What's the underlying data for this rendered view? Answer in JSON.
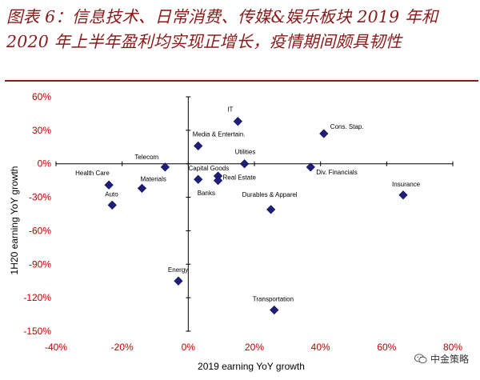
{
  "header": {
    "title": "图表 6：信息技术、日常消费、传媒&娱乐板块 2019 年和 2020 年上半年盈利均实现正增长，疫情期间颇具韧性"
  },
  "watermark": {
    "text": "中金策略"
  },
  "colors": {
    "title": "#8b1a1a",
    "axis_tick_label": "#c00000",
    "marker": "#1f1f7a",
    "axis": "#000000"
  },
  "chart_data": {
    "type": "scatter",
    "xlabel": "2019 earning YoY growth",
    "ylabel": "1H20 earning YoY growth",
    "xlim": [
      -40,
      80
    ],
    "ylim": [
      -150,
      60
    ],
    "xticks": [
      "-40%",
      "-20%",
      "0%",
      "20%",
      "40%",
      "60%",
      "80%"
    ],
    "yticks": [
      "60%",
      "30%",
      "0%",
      "-30%",
      "-60%",
      "-90%",
      "-120%",
      "-150%"
    ],
    "marker": "diamond",
    "points": [
      {
        "label": "IT",
        "x": 15,
        "y": 38
      },
      {
        "label": "Cons. Stap.",
        "x": 41,
        "y": 27
      },
      {
        "label": "Media & Entertain.",
        "x": 3,
        "y": 16
      },
      {
        "label": "Utilities",
        "x": 17,
        "y": 0
      },
      {
        "label": "Telecom",
        "x": -7,
        "y": -3
      },
      {
        "label": "Div. Financials",
        "x": 37,
        "y": -3
      },
      {
        "label": "Capital Goods",
        "x": 9,
        "y": -11
      },
      {
        "label": "Real Estate",
        "x": 9,
        "y": -15
      },
      {
        "label": "Banks",
        "x": 3,
        "y": -14
      },
      {
        "label": "Health Care",
        "x": -24,
        "y": -19
      },
      {
        "label": "Materials",
        "x": -14,
        "y": -22
      },
      {
        "label": "Auto",
        "x": -23,
        "y": -37
      },
      {
        "label": "Durables & Apparel",
        "x": 25,
        "y": -41
      },
      {
        "label": "Insurance",
        "x": 65,
        "y": -28
      },
      {
        "label": "Energy",
        "x": -3,
        "y": -105
      },
      {
        "label": "Transportation",
        "x": 26,
        "y": -131
      }
    ]
  }
}
